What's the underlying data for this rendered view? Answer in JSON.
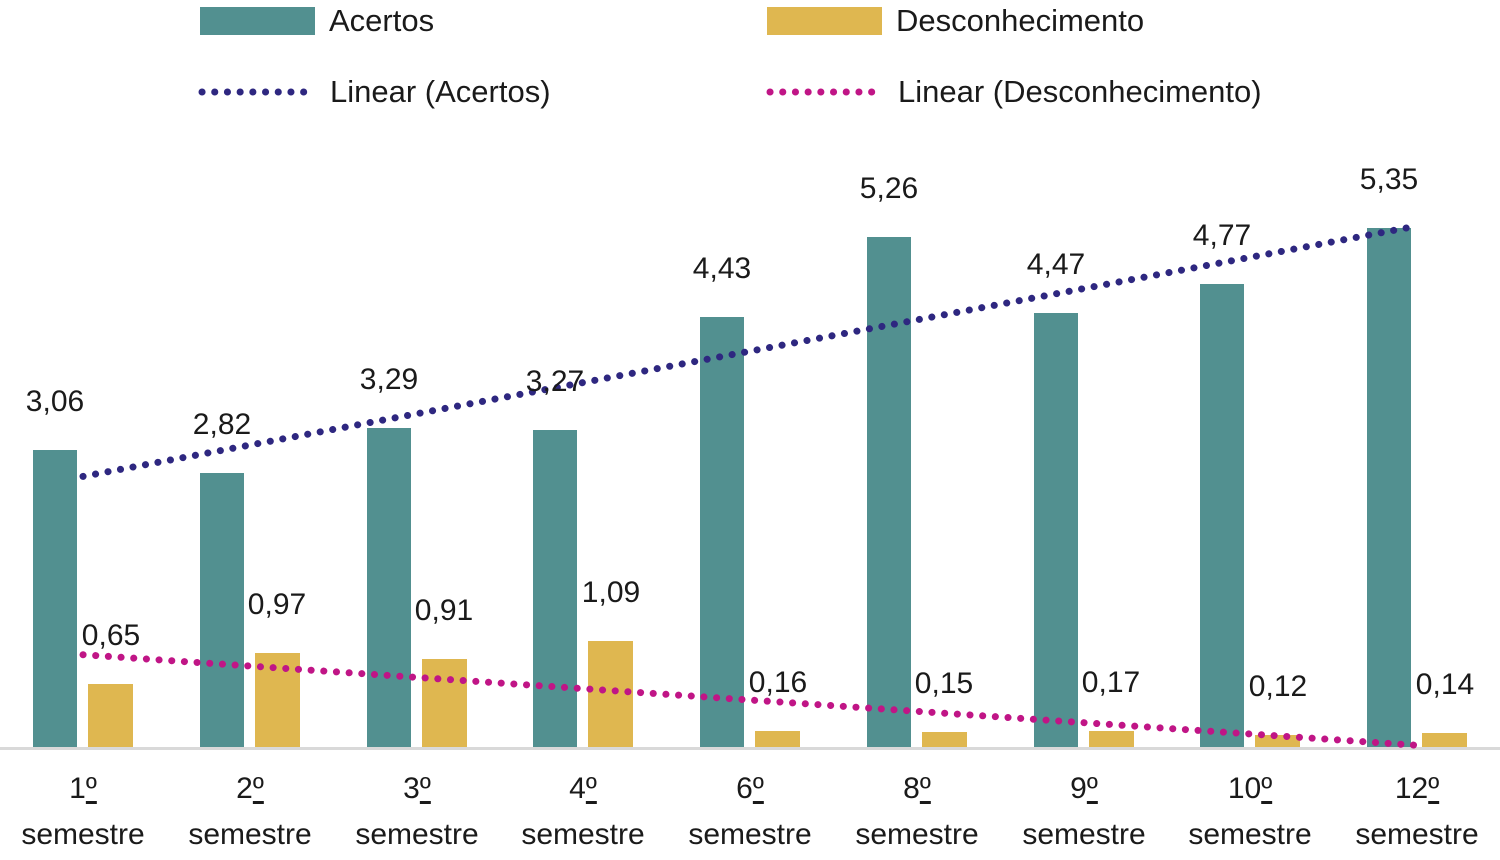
{
  "chart_data": {
    "type": "bar",
    "title": "",
    "xlabel": "",
    "ylabel": "",
    "grid": false,
    "y_axis_visible": false,
    "legend_position": "top",
    "decimal_separator": ",",
    "ylim": [
      0,
      5.6
    ],
    "categories": [
      "1º semestre",
      "2º semestre",
      "3º semestre",
      "4º semestre",
      "6º semestre",
      "8º semestre",
      "9º semestre",
      "10º semestre",
      "12º semestre"
    ],
    "series": [
      {
        "name": "Acertos",
        "color": "#529090",
        "values": [
          3.06,
          2.82,
          3.29,
          3.27,
          4.43,
          5.26,
          4.47,
          4.77,
          5.35
        ],
        "labels": [
          "3,06",
          "2,82",
          "3,29",
          "3,27",
          "4,43",
          "5,26",
          "4,47",
          "4,77",
          "5,35"
        ]
      },
      {
        "name": "Desconhecimento",
        "color": "#DFB750",
        "values": [
          0.65,
          0.97,
          0.91,
          1.09,
          0.16,
          0.15,
          0.17,
          0.12,
          0.14
        ],
        "labels": [
          "0,65",
          "0,97",
          "0,91",
          "1,09",
          "0,16",
          "0,15",
          "0,17",
          "0,12",
          "0,14"
        ]
      }
    ],
    "trendlines": [
      {
        "name": "Linear (Acertos)",
        "series": "Acertos",
        "style": "dotted",
        "color": "#2E2780"
      },
      {
        "name": "Linear (Desconhecimento)",
        "series": "Desconhecimento",
        "style": "dotted",
        "color": "#C01586"
      }
    ],
    "colors": {
      "axis_line": "#D9D9D9",
      "label_text": "#1A1A1A"
    }
  }
}
